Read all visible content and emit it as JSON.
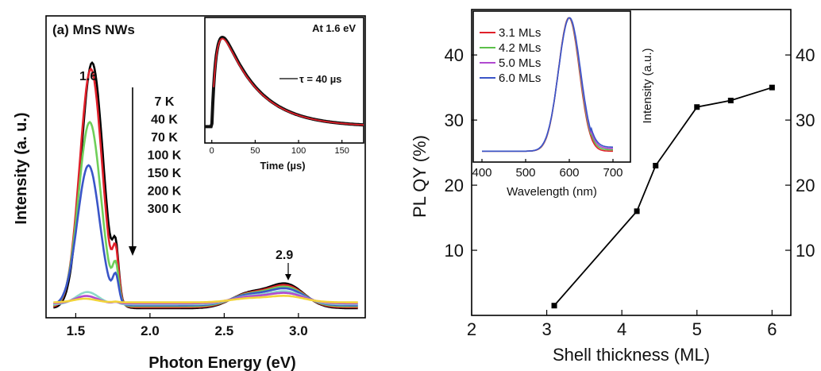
{
  "chart_data": [
    {
      "type": "line",
      "panel_label": "(a) MnS NWs",
      "xlabel": "Photon Energy (eV)",
      "ylabel": "Intensity (a. u.)",
      "xlim": [
        1.3,
        3.45
      ],
      "ylim": [
        0,
        1.1
      ],
      "x_ticks": [
        "1.5",
        "2.0",
        "2.5",
        "3.0"
      ],
      "peak_labels": [
        "1.6",
        "2.9"
      ],
      "legend_title": "",
      "series": [
        {
          "name": "7 K",
          "color": "#000000",
          "amp_low": 1.0,
          "amp_high": 0.095
        },
        {
          "name": "40 K",
          "color": "#e0202a",
          "amp_low": 0.97,
          "amp_high": 0.085
        },
        {
          "name": "70 K",
          "color": "#6fcf5a",
          "amp_low": 0.75,
          "amp_high": 0.075
        },
        {
          "name": "100 K",
          "color": "#3a55c8",
          "amp_low": 0.57,
          "amp_high": 0.065
        },
        {
          "name": "150 K",
          "color": "#8cd9c8",
          "amp_low": 0.05,
          "amp_high": 0.05
        },
        {
          "name": "200 K",
          "color": "#b04ad0",
          "amp_low": 0.03,
          "amp_high": 0.04
        },
        {
          "name": "300 K",
          "color": "#f2d43a",
          "amp_low": 0.015,
          "amp_high": 0.025
        }
      ],
      "inset": {
        "type": "line",
        "title": "At 1.6 eV",
        "xlabel": "Time (µs)",
        "x_ticks": [
          "0",
          "50",
          "100",
          "150"
        ],
        "xlim": [
          -8,
          175
        ],
        "annotation": "τ = 40 µs",
        "series": [
          {
            "name": "data",
            "color": "#111111"
          },
          {
            "name": "fit",
            "color": "#e0202a"
          }
        ]
      }
    },
    {
      "type": "line",
      "xlabel": "Shell thickness (ML)",
      "ylabel": "PL QY (%)",
      "xlim": [
        2,
        6.25
      ],
      "ylim": [
        0,
        46
      ],
      "x_ticks": [
        "2",
        "3",
        "4",
        "5",
        "6"
      ],
      "y_ticks": [
        "10",
        "20",
        "30",
        "40"
      ],
      "right_y_ticks": [
        "10",
        "20",
        "30",
        "40"
      ],
      "series": [
        {
          "name": "",
          "x": [
            3.1,
            4.2,
            4.45,
            5.0,
            5.45,
            6.0
          ],
          "y": [
            1.5,
            16,
            23,
            32,
            33,
            35
          ]
        }
      ],
      "inset": {
        "type": "line",
        "xlabel": "Wavelength (nm)",
        "ylabel": "Intensity (a.u.)",
        "x_ticks": [
          "400",
          "500",
          "600",
          "700"
        ],
        "xlim": [
          380,
          740
        ],
        "legend": [
          "3.1 MLs",
          "4.2 MLs",
          "5.0 MLs",
          "6.0 MLs"
        ],
        "colors": [
          "#e0202a",
          "#5cc04a",
          "#b04ad0",
          "#3a55c8"
        ]
      }
    }
  ]
}
